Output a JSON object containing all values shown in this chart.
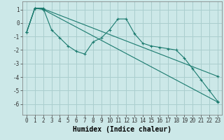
{
  "xlabel": "Humidex (Indice chaleur)",
  "bg_color": "#cce8e8",
  "grid_color": "#aacece",
  "line_color": "#1a7a6e",
  "xlim": [
    -0.5,
    23.5
  ],
  "ylim": [
    -6.8,
    1.6
  ],
  "line1_x": [
    0,
    1,
    2,
    3,
    4,
    5,
    6,
    7,
    8,
    9,
    10,
    11,
    12,
    13,
    14,
    15,
    16,
    17,
    18,
    19,
    20,
    21,
    22,
    23
  ],
  "line1_y": [
    -0.7,
    1.1,
    1.1,
    -0.5,
    -1.1,
    -1.7,
    -2.1,
    -2.3,
    -1.4,
    -1.1,
    -0.5,
    0.3,
    0.3,
    -0.8,
    -1.5,
    -1.7,
    -1.8,
    -1.9,
    -2.0,
    -2.6,
    -3.4,
    -4.2,
    -5.0,
    -5.8
  ],
  "line2_x": [
    0,
    1,
    2,
    23
  ],
  "line2_y": [
    -0.7,
    1.1,
    1.0,
    -5.85
  ],
  "line3_x": [
    0,
    1,
    2,
    23
  ],
  "line3_y": [
    -0.7,
    1.1,
    1.05,
    -3.95
  ],
  "ytick_values": [
    -6,
    -5,
    -4,
    -3,
    -2,
    -1,
    0,
    1
  ],
  "xtick_labels": [
    "0",
    "1",
    "2",
    "3",
    "4",
    "5",
    "6",
    "7",
    "8",
    "9",
    "10",
    "11",
    "12",
    "13",
    "14",
    "15",
    "16",
    "17",
    "18",
    "19",
    "20",
    "21",
    "22",
    "23"
  ],
  "tick_fontsize": 5.5,
  "label_fontsize": 7.0
}
